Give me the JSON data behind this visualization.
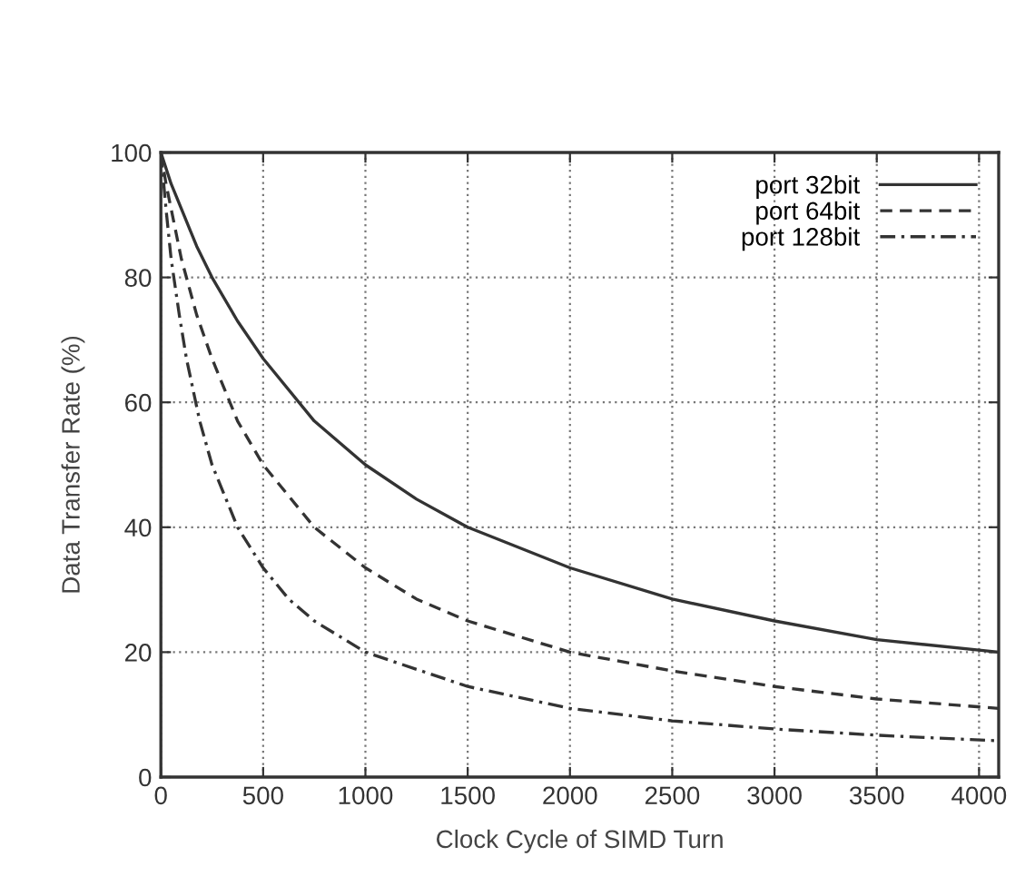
{
  "chart_data": {
    "type": "line",
    "xlabel": "Clock Cycle of SIMD Turn",
    "ylabel": "Data Transfer Rate (%)",
    "xlim": [
      0,
      4096
    ],
    "xticks": [
      0,
      500,
      1000,
      1500,
      2000,
      2500,
      3000,
      3500,
      4000
    ],
    "ylim": [
      0,
      100
    ],
    "yticks": [
      0,
      20,
      40,
      60,
      80,
      100
    ],
    "grid": true,
    "legend": "top right",
    "marker": "none",
    "series": [
      {
        "name": "port 32bit",
        "color": "#333333",
        "line_style": "solid",
        "x": [
          0,
          50,
          100,
          175,
          250,
          375,
          500,
          750,
          1000,
          1250,
          1500,
          2000,
          2500,
          3000,
          3500,
          4096
        ],
        "values": [
          100,
          95,
          91,
          85,
          80,
          73,
          67,
          57,
          50,
          44.5,
          40,
          33.5,
          28.5,
          25,
          22,
          20
        ]
      },
      {
        "name": "port 64bit",
        "color": "#333333",
        "line_style": "dashed",
        "x": [
          0,
          25,
          50,
          100,
          175,
          250,
          375,
          500,
          750,
          1000,
          1250,
          1500,
          2000,
          2500,
          3000,
          3500,
          4096
        ],
        "values": [
          100,
          95,
          91,
          83,
          74,
          67,
          57,
          50,
          40,
          33.5,
          28.5,
          25,
          20,
          17,
          14.5,
          12.5,
          11
        ]
      },
      {
        "name": "port 128bit",
        "color": "#333333",
        "line_style": "dashdot",
        "x": [
          0,
          25,
          50,
          90,
          125,
          190,
          250,
          375,
          500,
          625,
          750,
          1000,
          1500,
          2000,
          2500,
          3000,
          3500,
          4096
        ],
        "values": [
          100,
          91,
          83,
          74,
          67,
          57,
          50,
          40,
          33.5,
          28.5,
          25,
          20,
          14.5,
          11,
          9,
          7.7,
          6.7,
          5.8
        ]
      }
    ]
  }
}
